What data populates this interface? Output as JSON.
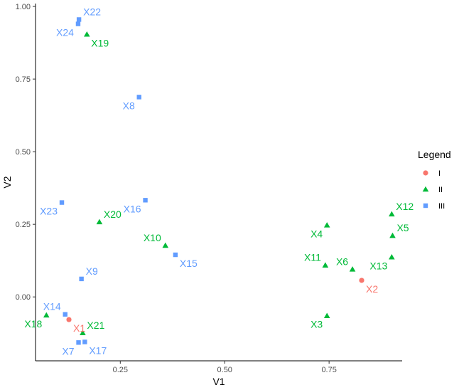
{
  "chart_data": {
    "type": "scatter",
    "title": "",
    "xlabel": "V1",
    "ylabel": "V2",
    "xlim": [
      0.047,
      0.925
    ],
    "ylim": [
      -0.22,
      1.01
    ],
    "x_ticks": [
      0.25,
      0.5,
      0.75
    ],
    "x_tick_labels": [
      "0.25",
      "0.50",
      "0.75"
    ],
    "y_ticks": [
      0.0,
      0.25,
      0.5,
      0.75,
      1.0
    ],
    "y_tick_labels": [
      "0.00",
      "0.25",
      "0.50",
      "0.75",
      "1.00"
    ],
    "grid": false,
    "legend": {
      "title": "Legend",
      "position": "right",
      "entries": [
        {
          "name": "I",
          "shape": "circle",
          "color": "#F8766D"
        },
        {
          "name": "II",
          "shape": "triangle",
          "color": "#00BA38"
        },
        {
          "name": "III",
          "shape": "square",
          "color": "#619CFF"
        }
      ]
    },
    "series": [
      {
        "name": "I",
        "color": "#F8766D",
        "shape": "circle",
        "points": [
          {
            "label": "X1",
            "x": 0.127,
            "y": -0.078,
            "anchor": "below-right"
          },
          {
            "label": "X2",
            "x": 0.828,
            "y": 0.057,
            "anchor": "below-right"
          }
        ]
      },
      {
        "name": "II",
        "color": "#00BA38",
        "shape": "triangle",
        "points": [
          {
            "label": "X3",
            "x": 0.745,
            "y": -0.065,
            "anchor": "below-left"
          },
          {
            "label": "X4",
            "x": 0.745,
            "y": 0.247,
            "anchor": "below-left"
          },
          {
            "label": "X5",
            "x": 0.902,
            "y": 0.211,
            "anchor": "above-right"
          },
          {
            "label": "X6",
            "x": 0.806,
            "y": 0.095,
            "anchor": "above-left"
          },
          {
            "label": "X10",
            "x": 0.358,
            "y": 0.177,
            "anchor": "above-left"
          },
          {
            "label": "X11",
            "x": 0.741,
            "y": 0.109,
            "anchor": "above-left"
          },
          {
            "label": "X12",
            "x": 0.9,
            "y": 0.285,
            "anchor": "above-right"
          },
          {
            "label": "X13",
            "x": 0.9,
            "y": 0.137,
            "anchor": "below-left"
          },
          {
            "label": "X18",
            "x": 0.073,
            "y": -0.063,
            "anchor": "below-left"
          },
          {
            "label": "X19",
            "x": 0.17,
            "y": 0.904,
            "anchor": "below-right"
          },
          {
            "label": "X20",
            "x": 0.2,
            "y": 0.258,
            "anchor": "above-right"
          },
          {
            "label": "X21",
            "x": 0.16,
            "y": -0.124,
            "anchor": "above-right"
          }
        ]
      },
      {
        "name": "III",
        "color": "#619CFF",
        "shape": "square",
        "points": [
          {
            "label": "X7",
            "x": 0.15,
            "y": -0.157,
            "anchor": "below-left"
          },
          {
            "label": "X8",
            "x": 0.295,
            "y": 0.688,
            "anchor": "below-left"
          },
          {
            "label": "X9",
            "x": 0.157,
            "y": 0.062,
            "anchor": "above-right"
          },
          {
            "label": "X14",
            "x": 0.118,
            "y": -0.06,
            "anchor": "above-left"
          },
          {
            "label": "X15",
            "x": 0.382,
            "y": 0.145,
            "anchor": "below-right"
          },
          {
            "label": "X16",
            "x": 0.31,
            "y": 0.333,
            "anchor": "below-left"
          },
          {
            "label": "X17",
            "x": 0.165,
            "y": -0.155,
            "anchor": "below-right"
          },
          {
            "label": "X22",
            "x": 0.151,
            "y": 0.955,
            "anchor": "above-right"
          },
          {
            "label": "X23",
            "x": 0.11,
            "y": 0.325,
            "anchor": "below-left"
          },
          {
            "label": "X24",
            "x": 0.149,
            "y": 0.94,
            "anchor": "below-left"
          }
        ]
      }
    ]
  }
}
